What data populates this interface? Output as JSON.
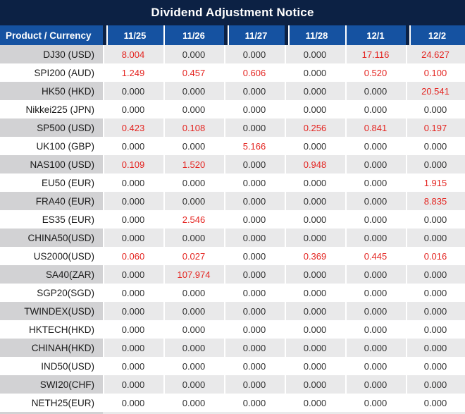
{
  "title": "Dividend Adjustment Notice",
  "colors": {
    "title_bg": "#0c2144",
    "header_bg": "#1552a1",
    "header_text": "#ffffff",
    "alt_row_label_bg": "#d2d2d4",
    "alt_row_value_bg": "#e9e9ea",
    "row_bg": "#ffffff",
    "zero_value_text": "#303030",
    "nonzero_value_text": "#e42521"
  },
  "table": {
    "label_header": "Product / Currency",
    "date_headers": [
      "11/25",
      "11/26",
      "11/27",
      "11/28",
      "12/1",
      "12/2"
    ],
    "zero_display": "0.000",
    "rows": [
      {
        "product": "DJ30 (USD)",
        "values": [
          "8.004",
          "0.000",
          "0.000",
          "0.000",
          "17.116",
          "24.627"
        ]
      },
      {
        "product": "SPI200 (AUD)",
        "values": [
          "1.249",
          "0.457",
          "0.606",
          "0.000",
          "0.520",
          "0.100"
        ]
      },
      {
        "product": "HK50 (HKD)",
        "values": [
          "0.000",
          "0.000",
          "0.000",
          "0.000",
          "0.000",
          "20.541"
        ]
      },
      {
        "product": "Nikkei225 (JPN)",
        "values": [
          "0.000",
          "0.000",
          "0.000",
          "0.000",
          "0.000",
          "0.000"
        ]
      },
      {
        "product": "SP500 (USD)",
        "values": [
          "0.423",
          "0.108",
          "0.000",
          "0.256",
          "0.841",
          "0.197"
        ]
      },
      {
        "product": "UK100 (GBP)",
        "values": [
          "0.000",
          "0.000",
          "5.166",
          "0.000",
          "0.000",
          "0.000"
        ]
      },
      {
        "product": "NAS100 (USD)",
        "values": [
          "0.109",
          "1.520",
          "0.000",
          "0.948",
          "0.000",
          "0.000"
        ]
      },
      {
        "product": "EU50 (EUR)",
        "values": [
          "0.000",
          "0.000",
          "0.000",
          "0.000",
          "0.000",
          "1.915"
        ]
      },
      {
        "product": "FRA40 (EUR)",
        "values": [
          "0.000",
          "0.000",
          "0.000",
          "0.000",
          "0.000",
          "8.835"
        ]
      },
      {
        "product": "ES35 (EUR)",
        "values": [
          "0.000",
          "2.546",
          "0.000",
          "0.000",
          "0.000",
          "0.000"
        ]
      },
      {
        "product": "CHINA50(USD)",
        "values": [
          "0.000",
          "0.000",
          "0.000",
          "0.000",
          "0.000",
          "0.000"
        ]
      },
      {
        "product": "US2000(USD)",
        "values": [
          "0.060",
          "0.027",
          "0.000",
          "0.369",
          "0.445",
          "0.016"
        ]
      },
      {
        "product": "SA40(ZAR)",
        "values": [
          "0.000",
          "107.974",
          "0.000",
          "0.000",
          "0.000",
          "0.000"
        ]
      },
      {
        "product": "SGP20(SGD)",
        "values": [
          "0.000",
          "0.000",
          "0.000",
          "0.000",
          "0.000",
          "0.000"
        ]
      },
      {
        "product": "TWINDEX(USD)",
        "values": [
          "0.000",
          "0.000",
          "0.000",
          "0.000",
          "0.000",
          "0.000"
        ]
      },
      {
        "product": "HKTECH(HKD)",
        "values": [
          "0.000",
          "0.000",
          "0.000",
          "0.000",
          "0.000",
          "0.000"
        ]
      },
      {
        "product": "CHINAH(HKD)",
        "values": [
          "0.000",
          "0.000",
          "0.000",
          "0.000",
          "0.000",
          "0.000"
        ]
      },
      {
        "product": "IND50(USD)",
        "values": [
          "0.000",
          "0.000",
          "0.000",
          "0.000",
          "0.000",
          "0.000"
        ]
      },
      {
        "product": "SWI20(CHF)",
        "values": [
          "0.000",
          "0.000",
          "0.000",
          "0.000",
          "0.000",
          "0.000"
        ]
      },
      {
        "product": "NETH25(EUR)",
        "values": [
          "0.000",
          "0.000",
          "0.000",
          "0.000",
          "0.000",
          "0.000"
        ]
      }
    ]
  }
}
